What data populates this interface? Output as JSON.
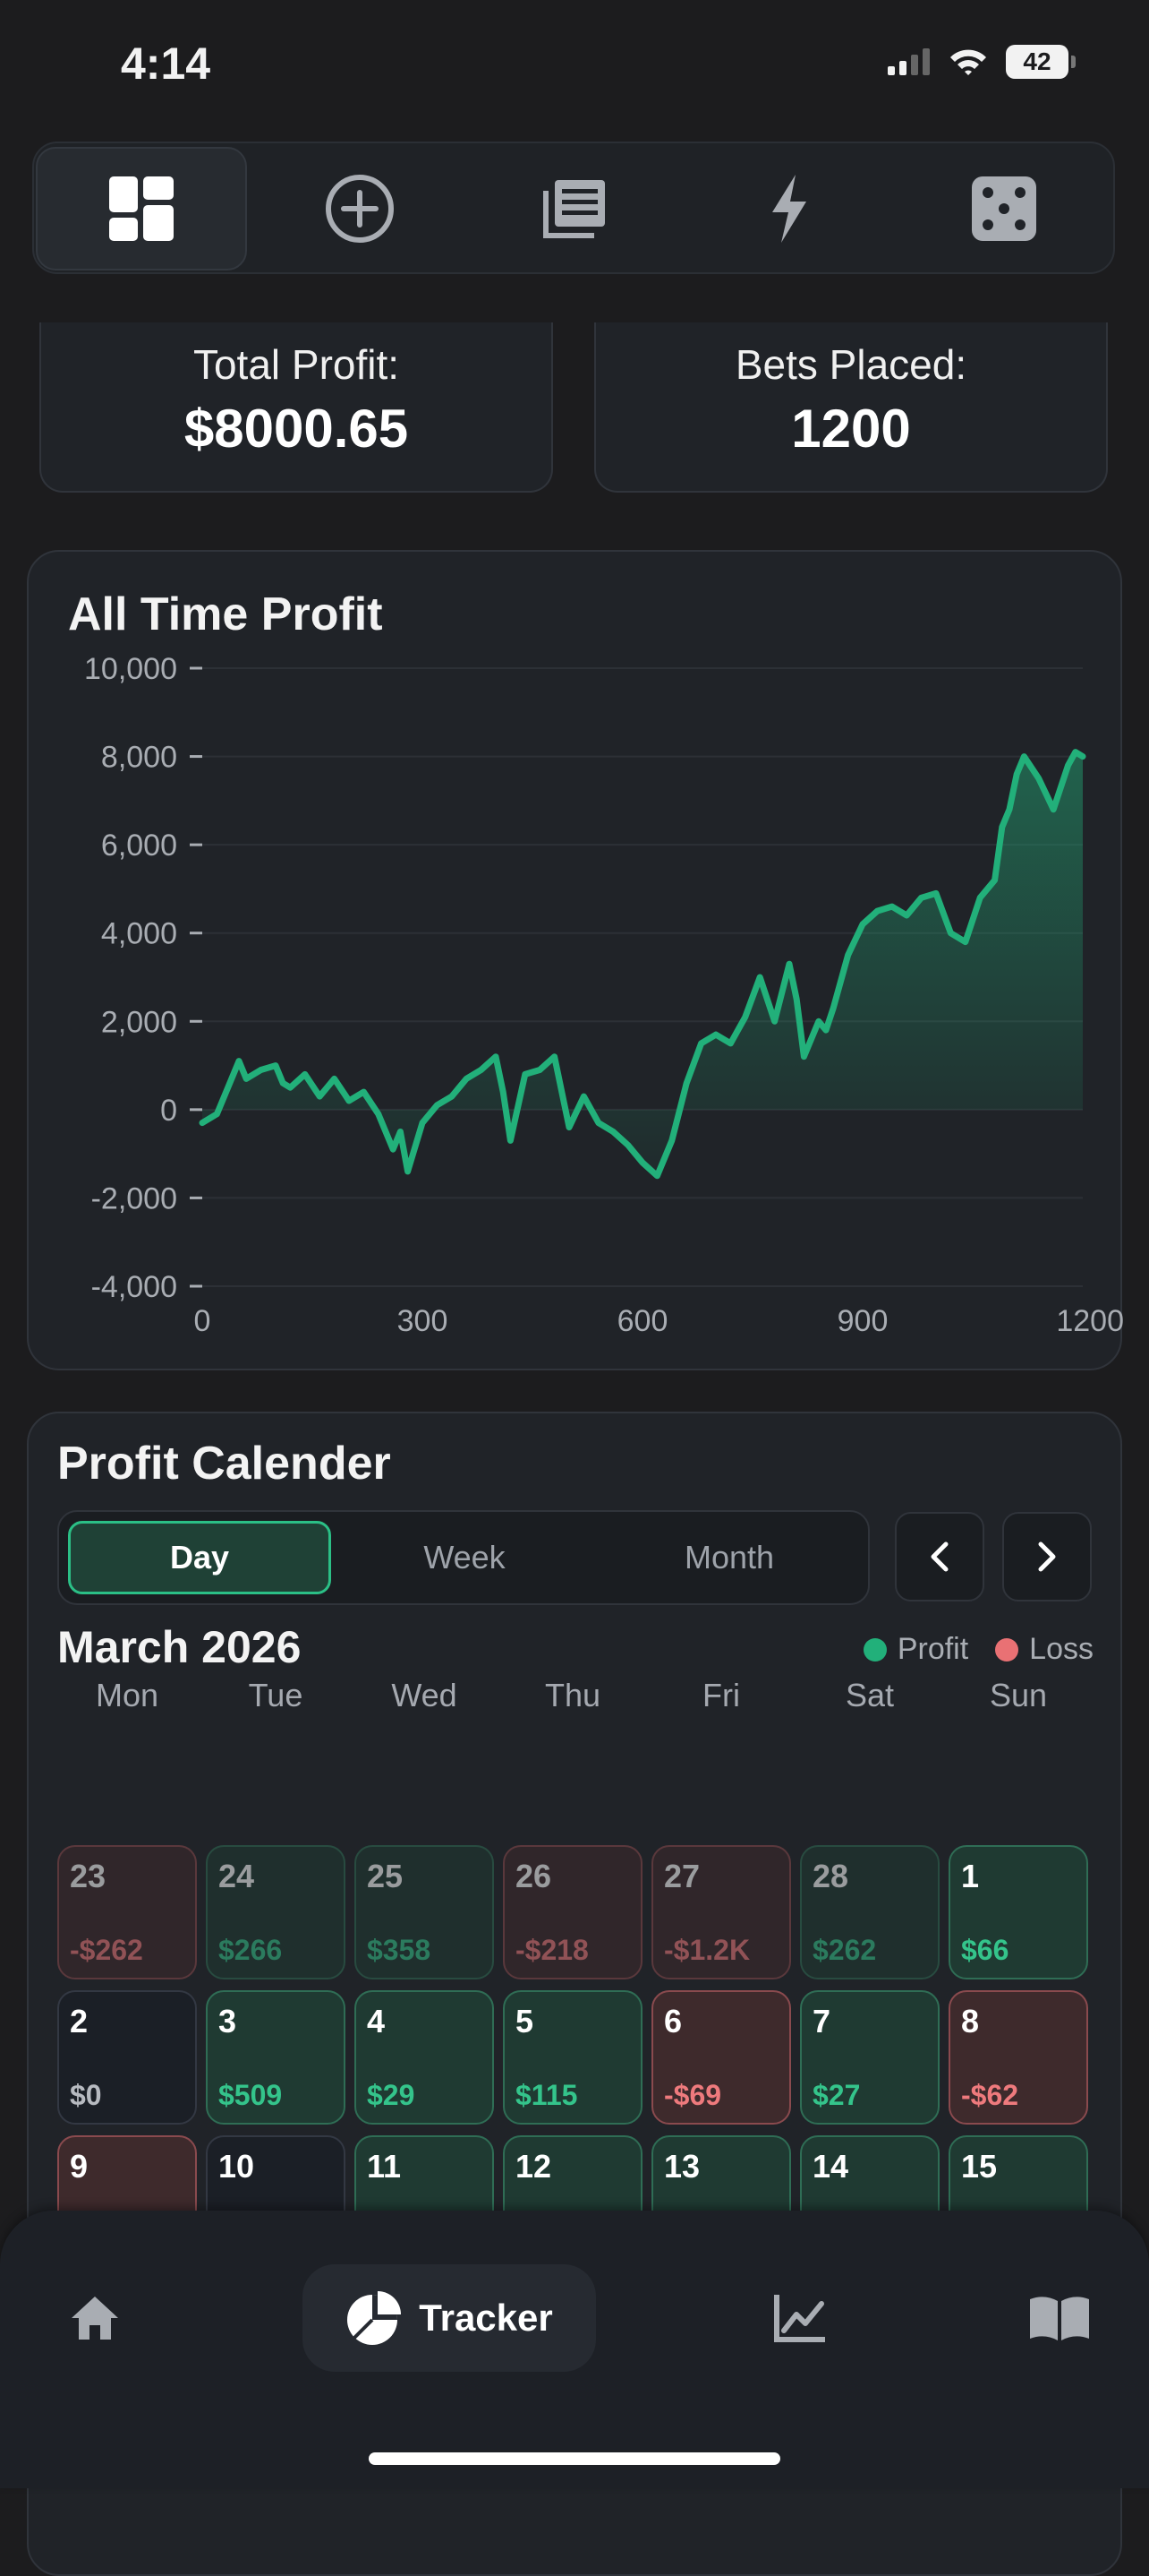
{
  "status_bar": {
    "time": "4:14",
    "battery": "42"
  },
  "top_nav": {
    "items": [
      {
        "icon": "dashboard-icon",
        "active": true
      },
      {
        "icon": "add-circle-icon",
        "active": false
      },
      {
        "icon": "news-icon",
        "active": false
      },
      {
        "icon": "lightning-icon",
        "active": false
      },
      {
        "icon": "dice-icon",
        "active": false
      }
    ]
  },
  "stats": {
    "total_profit_label": "Total Profit:",
    "total_profit_value": "$8000.65",
    "bets_placed_label": "Bets Placed:",
    "bets_placed_value": "1200"
  },
  "chart_title": "All Time Profit",
  "chart_data": {
    "type": "area",
    "title": "All Time Profit",
    "xlabel": "",
    "ylabel": "",
    "xlim": [
      0,
      1200
    ],
    "ylim": [
      -4000,
      10000
    ],
    "x_ticks": [
      "0",
      "300",
      "600",
      "900",
      "1200"
    ],
    "y_ticks": [
      "10,000",
      "8,000",
      "6,000",
      "4,000",
      "2,000",
      "0",
      "-2,000",
      "-4,000"
    ],
    "series": [
      {
        "color": "#22b07a",
        "x": [
          0,
          20,
          40,
          50,
          60,
          80,
          100,
          110,
          120,
          140,
          160,
          180,
          200,
          220,
          240,
          260,
          270,
          280,
          300,
          320,
          340,
          360,
          380,
          400,
          410,
          420,
          440,
          460,
          480,
          500,
          520,
          540,
          560,
          580,
          600,
          620,
          640,
          660,
          680,
          700,
          720,
          740,
          760,
          780,
          800,
          810,
          820,
          840,
          850,
          860,
          880,
          900,
          920,
          940,
          960,
          980,
          1000,
          1020,
          1040,
          1060,
          1080,
          1090,
          1100,
          1110,
          1120,
          1140,
          1160,
          1180,
          1190,
          1200
        ],
        "y": [
          -300,
          -100,
          700,
          1100,
          700,
          900,
          1000,
          600,
          500,
          800,
          300,
          700,
          200,
          400,
          -100,
          -900,
          -500,
          -1400,
          -300,
          100,
          300,
          700,
          900,
          1200,
          400,
          -700,
          800,
          900,
          1200,
          -400,
          300,
          -300,
          -500,
          -800,
          -1200,
          -1500,
          -700,
          600,
          1500,
          1700,
          1500,
          2100,
          3000,
          2000,
          3300,
          2500,
          1200,
          2000,
          1800,
          2300,
          3500,
          4200,
          4500,
          4600,
          4400,
          4800,
          4900,
          4000,
          3800,
          4800,
          5200,
          6400,
          6800,
          7600,
          8000,
          7500,
          6800,
          7800,
          8100,
          8000
        ]
      }
    ]
  },
  "calendar": {
    "title": "Profit Calender",
    "tabs": [
      "Day",
      "Week",
      "Month"
    ],
    "active_tab": "Day",
    "month": "March 2026",
    "legend_profit": "Profit",
    "legend_loss": "Loss",
    "profit_color": "#22b07a",
    "loss_color": "#e97174",
    "weekdays": [
      "Mon",
      "Tue",
      "Wed",
      "Thu",
      "Fri",
      "Sat",
      "Sun"
    ],
    "weeks": [
      [
        {
          "day": "23",
          "value": "-$262",
          "type": "loss",
          "faded": true
        },
        {
          "day": "24",
          "value": "$266",
          "type": "profit",
          "faded": true
        },
        {
          "day": "25",
          "value": "$358",
          "type": "profit",
          "faded": true
        },
        {
          "day": "26",
          "value": "-$218",
          "type": "loss",
          "faded": true
        },
        {
          "day": "27",
          "value": "-$1.2K",
          "type": "loss",
          "faded": true
        },
        {
          "day": "28",
          "value": "$262",
          "type": "profit",
          "faded": true
        },
        {
          "day": "1",
          "value": "$66",
          "type": "profit",
          "faded": false
        }
      ],
      [
        {
          "day": "2",
          "value": "$0",
          "type": "neutral",
          "faded": false
        },
        {
          "day": "3",
          "value": "$509",
          "type": "profit",
          "faded": false
        },
        {
          "day": "4",
          "value": "$29",
          "type": "profit",
          "faded": false
        },
        {
          "day": "5",
          "value": "$115",
          "type": "profit",
          "faded": false
        },
        {
          "day": "6",
          "value": "-$69",
          "type": "loss",
          "faded": false
        },
        {
          "day": "7",
          "value": "$27",
          "type": "profit",
          "faded": false
        },
        {
          "day": "8",
          "value": "-$62",
          "type": "loss",
          "faded": false
        }
      ],
      [
        {
          "day": "9",
          "value": "",
          "type": "loss",
          "faded": false
        },
        {
          "day": "10",
          "value": "",
          "type": "neutral",
          "faded": false
        },
        {
          "day": "11",
          "value": "",
          "type": "profit",
          "faded": false
        },
        {
          "day": "12",
          "value": "",
          "type": "profit",
          "faded": false
        },
        {
          "day": "13",
          "value": "",
          "type": "profit",
          "faded": false
        },
        {
          "day": "14",
          "value": "",
          "type": "profit",
          "faded": false
        },
        {
          "day": "15",
          "value": "",
          "type": "profit",
          "faded": false
        }
      ]
    ]
  },
  "bottom_nav": {
    "items": [
      {
        "icon": "home-icon",
        "label": ""
      },
      {
        "icon": "pie-chart-icon",
        "label": "Tracker",
        "active": true
      },
      {
        "icon": "line-chart-icon",
        "label": ""
      },
      {
        "icon": "book-icon",
        "label": ""
      }
    ]
  }
}
